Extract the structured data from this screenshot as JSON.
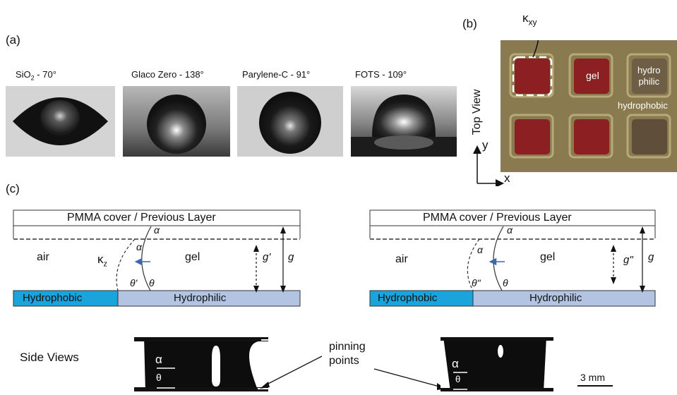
{
  "panel_a": {
    "label": "(a)",
    "photos": [
      {
        "caption_main": "SiO",
        "caption_sub": "2",
        "caption_rest": " - 70°"
      },
      {
        "caption_main": "Glaco Zero - 138°",
        "caption_sub": "",
        "caption_rest": ""
      },
      {
        "caption_main": "Parylene-C - 91°",
        "caption_sub": "",
        "caption_rest": ""
      },
      {
        "caption_main": "FOTS - 109°",
        "caption_sub": "",
        "caption_rest": ""
      }
    ]
  },
  "panel_b": {
    "label": "(b)",
    "side_label": "Top View",
    "kappa_main": "κ",
    "kappa_sub": "xy",
    "gel_label": "gel",
    "hydrophilic_label_1": "hydro",
    "hydrophilic_label_2": "philic",
    "hydrophobic_label": "hydrophobic",
    "axis_y": "y",
    "axis_x": "x",
    "colors": {
      "board": "#8a7a50",
      "gel": "#8c1f22",
      "empty": "#5f4f3a"
    }
  },
  "panel_c": {
    "label": "(c)",
    "left": {
      "cover": "PMMA cover / Previous Layer",
      "air": "air",
      "gel": "gel",
      "kappa_main": "κ",
      "kappa_sub": "z",
      "alpha_top": "α",
      "alpha_mid": "α",
      "theta_prime": "θ'",
      "theta": "θ",
      "gap_small": "g'",
      "gap": "g",
      "hydrophobic": "Hydrophobic",
      "hydrophilic": "Hydrophilic"
    },
    "right": {
      "cover": "PMMA cover / Previous Layer",
      "air": "air",
      "gel": "gel",
      "alpha_top": "α",
      "alpha_mid": "α",
      "theta_dprime": "θ\"",
      "theta": "θ",
      "gap_small": "g\"",
      "gap": "g",
      "hydrophobic": "Hydrophobic",
      "hydrophilic": "Hydrophilic"
    },
    "colors": {
      "hydrophobic": "#1ba3dc",
      "hydrophilic": "#b3c4e3",
      "arrow": "#3d66b0"
    }
  },
  "side_views": {
    "label": "Side Views",
    "pinning_1": "pinning",
    "pinning_2": "points",
    "left_alpha": "α",
    "left_theta": "θ",
    "right_alpha": "α",
    "right_theta": "θ",
    "scale": "3 mm"
  }
}
